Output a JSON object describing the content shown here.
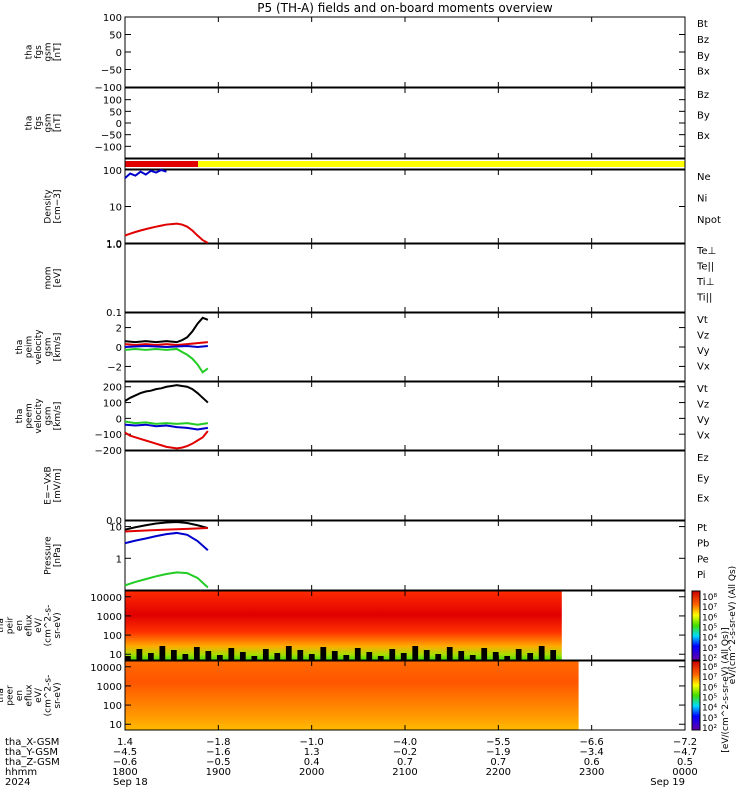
{
  "title": "P5 (TH-A) fields and on-board moments overview",
  "colors": {
    "black": "#000000",
    "red": "#e00000",
    "green": "#22cc22",
    "blue": "#0000cc",
    "yellow": "#ffff00"
  },
  "chart_data": [
    {
      "type": "line",
      "id": "fgs",
      "ylabel": [
        "tha",
        "fgs",
        "gsm",
        "[nT]"
      ],
      "ylim": [
        -100,
        100
      ],
      "yticks": [
        "100",
        "50",
        "0",
        "−50",
        "−100"
      ],
      "legend": [
        {
          "name": "Bt",
          "color": "#000000"
        },
        {
          "name": "Bz",
          "color": "#e00000"
        },
        {
          "name": "By",
          "color": "#22cc22"
        },
        {
          "name": "Bx",
          "color": "#0000cc"
        }
      ]
    },
    {
      "type": "line",
      "id": "fgs_dsl",
      "ylabel": [
        "tha",
        "fgs",
        "gsm",
        "[nT]"
      ],
      "ylim": [
        -150,
        150
      ],
      "yticks": [
        "100",
        "50",
        "0",
        "−50",
        "−100"
      ],
      "legend": [
        {
          "name": "Bz",
          "color": "#e00000"
        },
        {
          "name": "By",
          "color": "#22cc22"
        },
        {
          "name": "Bx",
          "color": "#000000"
        }
      ]
    },
    {
      "type": "bar",
      "id": "mode_bar",
      "segments": [
        {
          "start": "18:00",
          "end": "18:47",
          "color": "#e00000"
        },
        {
          "start": "18:47",
          "end": "24:00",
          "color": "#ffff00"
        }
      ]
    },
    {
      "type": "line",
      "id": "density",
      "scale": "log",
      "ylabel": [
        "Density",
        "[cm−3]"
      ],
      "ylim": [
        1,
        100
      ],
      "yticks": [
        "100",
        "10",
        "1.0"
      ],
      "legend": [
        {
          "name": "Ne",
          "color": "#e00000"
        },
        {
          "name": "Ni",
          "color": "#000000"
        },
        {
          "name": "Npot",
          "color": "#0000cc"
        }
      ],
      "series": [
        {
          "name": "Ne",
          "color": "#e00000",
          "x": [
            0,
            0.05,
            0.1,
            0.15,
            0.2,
            0.25,
            0.3,
            0.35,
            0.4,
            0.45,
            0.5,
            0.55,
            0.6,
            0.65,
            0.7,
            0.75,
            0.8
          ],
          "y": [
            1.6,
            1.8,
            2.0,
            2.2,
            2.4,
            2.6,
            2.8,
            3.0,
            3.2,
            3.3,
            3.4,
            3.2,
            2.8,
            2.2,
            1.6,
            1.2,
            1.0
          ]
        },
        {
          "name": "Npot",
          "color": "#0000cc",
          "x": [
            0,
            0.05,
            0.1,
            0.15,
            0.2,
            0.25,
            0.3,
            0.35,
            0.4
          ],
          "y": [
            60,
            80,
            70,
            90,
            75,
            95,
            85,
            100,
            90
          ]
        }
      ]
    },
    {
      "type": "line",
      "id": "temperature",
      "scale": "log",
      "ylabel": [
        "mom",
        "[eV]"
      ],
      "ylim": [
        0.1,
        1.0
      ],
      "yticks": [
        "1.0",
        "0.1"
      ],
      "legend": [
        {
          "name": "Te⊥",
          "color": "#e00000"
        },
        {
          "name": "Te||",
          "color": "#000000"
        },
        {
          "name": "Ti⊥",
          "color": "#0000cc"
        },
        {
          "name": "Ti||",
          "color": "#22cc22"
        }
      ]
    },
    {
      "type": "line",
      "id": "peim_velocity",
      "ylabel": [
        "tha",
        "peim",
        "velocity",
        "gsm",
        "[km/s]"
      ],
      "ylim": [
        -3.5,
        3.5
      ],
      "yticks": [
        "2",
        "0",
        "−2"
      ],
      "legend": [
        {
          "name": "Vt",
          "color": "#000000"
        },
        {
          "name": "Vz",
          "color": "#e00000"
        },
        {
          "name": "Vy",
          "color": "#22cc22"
        },
        {
          "name": "Vx",
          "color": "#0000cc"
        }
      ],
      "series": [
        {
          "name": "Vt",
          "color": "#000000",
          "x": [
            0,
            0.1,
            0.2,
            0.3,
            0.4,
            0.5,
            0.55,
            0.6,
            0.65,
            0.7,
            0.75,
            0.8
          ],
          "y": [
            0.6,
            0.5,
            0.6,
            0.5,
            0.6,
            0.5,
            0.7,
            1.0,
            1.6,
            2.4,
            3.0,
            2.8
          ]
        },
        {
          "name": "Vz",
          "color": "#e00000",
          "x": [
            0,
            0.1,
            0.2,
            0.3,
            0.4,
            0.5,
            0.6,
            0.7,
            0.8
          ],
          "y": [
            0.3,
            0.2,
            0.3,
            0.2,
            0.3,
            0.2,
            0.3,
            0.4,
            0.5
          ]
        },
        {
          "name": "Vy",
          "color": "#22cc22",
          "x": [
            0,
            0.1,
            0.2,
            0.3,
            0.4,
            0.5,
            0.55,
            0.6,
            0.65,
            0.7,
            0.75,
            0.8
          ],
          "y": [
            -0.3,
            -0.2,
            -0.3,
            -0.2,
            -0.3,
            -0.2,
            -0.5,
            -0.8,
            -1.2,
            -1.8,
            -2.6,
            -2.2
          ]
        },
        {
          "name": "Vx",
          "color": "#0000cc",
          "x": [
            0,
            0.2,
            0.4,
            0.6,
            0.7,
            0.8
          ],
          "y": [
            0.0,
            0.1,
            0.0,
            0.1,
            0.0,
            0.1
          ]
        }
      ]
    },
    {
      "type": "line",
      "id": "peem_velocity",
      "ylabel": [
        "tha",
        "peem",
        "velocity",
        "gsm",
        "[km/s]"
      ],
      "ylim": [
        -200,
        230
      ],
      "yticks": [
        "200",
        "100",
        "0",
        "−100",
        "−200"
      ],
      "legend": [
        {
          "name": "Vt",
          "color": "#000000"
        },
        {
          "name": "Vz",
          "color": "#e00000"
        },
        {
          "name": "Vy",
          "color": "#22cc22"
        },
        {
          "name": "Vx",
          "color": "#0000cc"
        }
      ],
      "series": [
        {
          "name": "Vt",
          "color": "#000000",
          "x": [
            0,
            0.05,
            0.1,
            0.15,
            0.2,
            0.25,
            0.3,
            0.35,
            0.4,
            0.45,
            0.5,
            0.55,
            0.6,
            0.65,
            0.7,
            0.75,
            0.8
          ],
          "y": [
            110,
            130,
            145,
            160,
            170,
            175,
            185,
            190,
            200,
            205,
            210,
            205,
            200,
            185,
            160,
            130,
            100
          ]
        },
        {
          "name": "Vy",
          "color": "#22cc22",
          "x": [
            0,
            0.1,
            0.2,
            0.3,
            0.4,
            0.5,
            0.6,
            0.7,
            0.8
          ],
          "y": [
            -20,
            -30,
            -25,
            -35,
            -30,
            -35,
            -30,
            -40,
            -30
          ]
        },
        {
          "name": "Vx",
          "color": "#0000cc",
          "x": [
            0,
            0.1,
            0.2,
            0.3,
            0.4,
            0.5,
            0.6,
            0.7,
            0.8
          ],
          "y": [
            -40,
            -45,
            -40,
            -50,
            -45,
            -55,
            -60,
            -70,
            -60
          ]
        },
        {
          "name": "Vz",
          "color": "#e00000",
          "x": [
            0,
            0.05,
            0.1,
            0.15,
            0.2,
            0.25,
            0.3,
            0.35,
            0.4,
            0.45,
            0.5,
            0.55,
            0.6,
            0.65,
            0.7,
            0.75,
            0.8
          ],
          "y": [
            -90,
            -110,
            -120,
            -130,
            -140,
            -150,
            -160,
            -170,
            -180,
            -185,
            -190,
            -185,
            -175,
            -160,
            -140,
            -120,
            -80
          ]
        }
      ]
    },
    {
      "type": "line",
      "id": "efield",
      "ylabel": [
        "E=−VxB",
        "[mV/m]"
      ],
      "ylim": [
        0,
        1
      ],
      "yticks": [
        "0.0"
      ],
      "legend": [
        {
          "name": "Ez",
          "color": "#e00000"
        },
        {
          "name": "Ey",
          "color": "#22cc22"
        },
        {
          "name": "Ex",
          "color": "#0000cc"
        }
      ]
    },
    {
      "type": "line",
      "id": "pressure",
      "scale": "log",
      "ylabel": [
        "Pressure",
        "[nPa]"
      ],
      "ylim": [
        0.1,
        15
      ],
      "yticks": [
        "10",
        "1"
      ],
      "legend": [
        {
          "name": "Pt",
          "color": "#000000"
        },
        {
          "name": "Pb",
          "color": "#e00000"
        },
        {
          "name": "Pe",
          "color": "#22cc22"
        },
        {
          "name": "Pi",
          "color": "#0000cc"
        }
      ],
      "series": [
        {
          "name": "Pt",
          "color": "#000000",
          "x": [
            0,
            0.1,
            0.2,
            0.3,
            0.4,
            0.5,
            0.6,
            0.7,
            0.8
          ],
          "y": [
            8,
            9.5,
            11,
            12.5,
            13.5,
            14,
            13,
            11,
            9
          ]
        },
        {
          "name": "Pb",
          "color": "#e00000",
          "x": [
            0,
            0.2,
            0.4,
            0.6,
            0.8
          ],
          "y": [
            7,
            7.5,
            8,
            8.5,
            9
          ]
        },
        {
          "name": "Pi",
          "color": "#0000cc",
          "x": [
            0,
            0.1,
            0.2,
            0.3,
            0.4,
            0.5,
            0.6,
            0.7,
            0.8
          ],
          "y": [
            3.0,
            3.6,
            4.2,
            5.0,
            5.8,
            6.3,
            5.5,
            3.5,
            1.8
          ]
        },
        {
          "name": "Pe",
          "color": "#22cc22",
          "x": [
            0,
            0.1,
            0.2,
            0.3,
            0.4,
            0.5,
            0.6,
            0.7,
            0.8
          ],
          "y": [
            0.14,
            0.18,
            0.22,
            0.27,
            0.32,
            0.36,
            0.34,
            0.24,
            0.12
          ]
        }
      ]
    },
    {
      "type": "heatmap",
      "id": "peir_eflux",
      "ylabel": [
        "tha",
        "peir",
        "en",
        "eflux",
        "eV/",
        "(cm^2-s-",
        "sr-eV)"
      ],
      "scale": "log",
      "ylim": [
        5,
        20000
      ],
      "yticks": [
        "10000",
        "1000",
        "100",
        "10"
      ],
      "x_end": 0.78
    },
    {
      "type": "heatmap",
      "id": "peer_eflux",
      "ylabel": [
        "tha",
        "peer",
        "en",
        "eflux",
        "eV/",
        "(cm^2-s-",
        "sr-eV)"
      ],
      "scale": "log",
      "ylim": [
        5,
        20000
      ],
      "yticks": [
        "10000",
        "1000",
        "100",
        "10"
      ],
      "x_end": 0.81
    }
  ],
  "colorbar": {
    "ticks1": [
      "10⁸",
      "10⁷",
      "10⁶",
      "10⁵",
      "10⁴",
      "10³",
      "10²"
    ],
    "ticks2": [
      "10⁸",
      "10⁷",
      "10⁶",
      "10⁵",
      "10⁴",
      "10³",
      "10²"
    ],
    "label1": "eV/(cm^2-s-sr-eV) (All Qs)",
    "label2": "[eV/(cm^2-s-sr-eV) (All Qs)]"
  },
  "x_axis": {
    "row_labels": [
      "tha_X-GSM",
      "tha_Y-GSM",
      "tha_Z-GSM",
      "hhmm",
      "2024"
    ],
    "columns": [
      {
        "vals": [
          "1.4",
          "−4.5",
          "−0.6",
          "1800",
          "Sep 18"
        ]
      },
      {
        "vals": [
          "−1.8",
          "−1.6",
          "−0.5",
          "1900",
          ""
        ]
      },
      {
        "vals": [
          "−1.0",
          "1.3",
          "0.4",
          "2000",
          ""
        ]
      },
      {
        "vals": [
          "−4.0",
          "−0.2",
          "0.7",
          "2100",
          ""
        ]
      },
      {
        "vals": [
          "−5.5",
          "−1.9",
          "0.7",
          "2200",
          ""
        ]
      },
      {
        "vals": [
          "−6.6",
          "−3.4",
          "0.6",
          "2300",
          ""
        ]
      },
      {
        "vals": [
          "−7.2",
          "−4.7",
          "0.5",
          "0000",
          "Sep 19"
        ]
      }
    ]
  }
}
